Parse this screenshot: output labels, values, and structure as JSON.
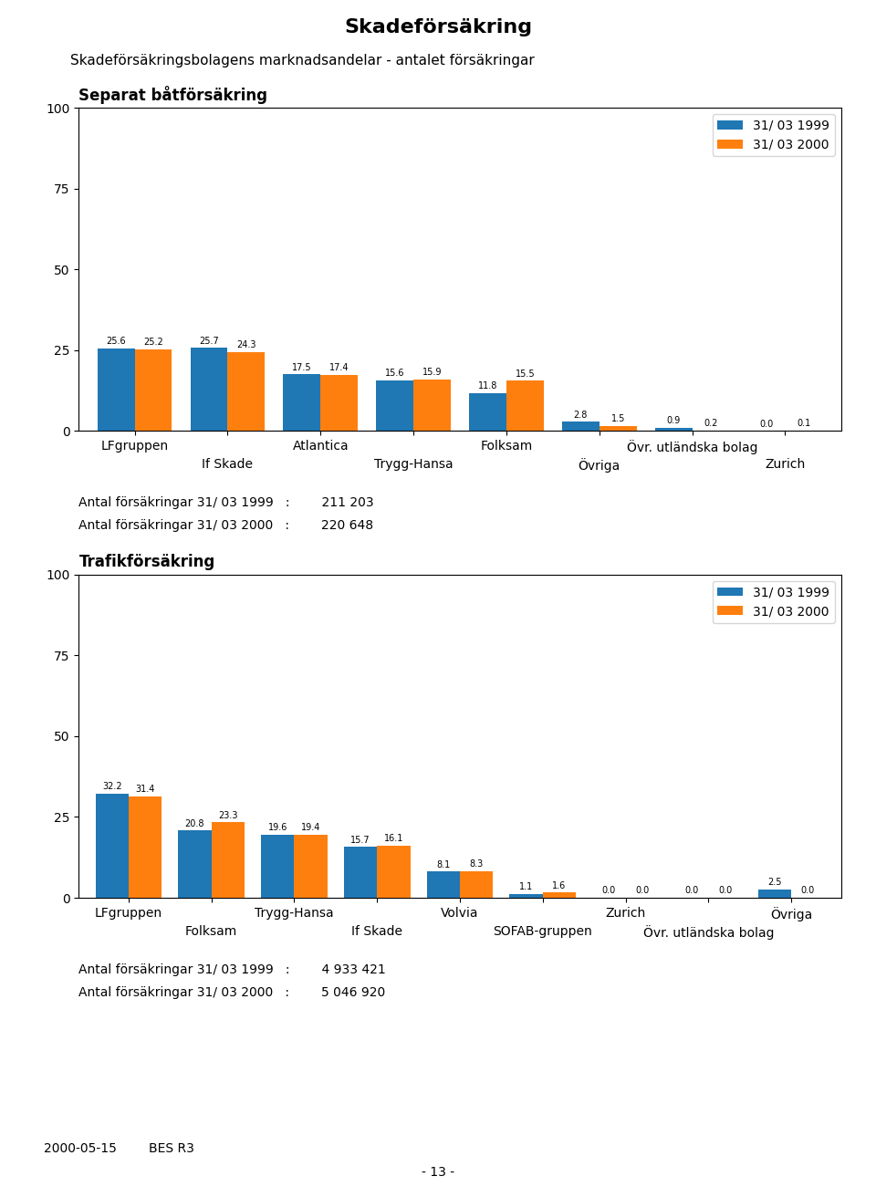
{
  "title": "Skadeförsäkring",
  "subtitle": "Skadeförsäkringsbolagens marknadsandelar - antalet försäkringar",
  "annotations": [
    "2000-05-15",
    "BES R3",
    "- 13 -"
  ],
  "chart_data": [
    {
      "type": "bar",
      "title": "Separat båtförsäkring",
      "categories": [
        "LFgruppen",
        "If Skade",
        "Atlantica",
        "Trygg-Hansa",
        "Folksam",
        "Övriga",
        "Övr. utländska bolag",
        "Zurich"
      ],
      "series": [
        {
          "name": "31/ 03 1999",
          "values": [
            25.6,
            25.7,
            17.5,
            15.6,
            11.8,
            2.8,
            0.9,
            0.0
          ]
        },
        {
          "name": "31/ 03 2000",
          "values": [
            25.2,
            24.3,
            17.4,
            15.9,
            15.5,
            1.5,
            0.2,
            0.1
          ]
        }
      ],
      "ylim": [
        0,
        100
      ],
      "yticks": [
        0,
        25,
        50,
        75,
        100
      ],
      "data_labels": true,
      "legend": "upper right",
      "annotations": [
        "Antal försäkringar 31/ 03 1999   :        211 203",
        "Antal försäkringar 31/ 03 2000   :        220 648"
      ]
    },
    {
      "type": "bar",
      "title": "Trafikförsäkring",
      "categories": [
        "LFgruppen",
        "Folksam",
        "Trygg-Hansa",
        "If Skade",
        "Volvia",
        "SOFAB-gruppen",
        "Zurich",
        "Övr. utländska bolag",
        "Övriga"
      ],
      "series": [
        {
          "name": "31/ 03 1999",
          "values": [
            32.2,
            20.8,
            19.6,
            15.7,
            8.1,
            1.1,
            0.0,
            0.0,
            2.5
          ]
        },
        {
          "name": "31/ 03 2000",
          "values": [
            31.4,
            23.3,
            19.4,
            16.1,
            8.3,
            1.6,
            0.0,
            0.0,
            0.0
          ]
        }
      ],
      "ylim": [
        0,
        100
      ],
      "yticks": [
        0,
        25,
        50,
        75,
        100
      ],
      "data_labels": true,
      "legend": "upper right",
      "annotations": [
        "Antal försäkringar 31/ 03 1999   :        4 933 421",
        "Antal försäkringar 31/ 03 2000   :        5 046 920"
      ]
    }
  ]
}
